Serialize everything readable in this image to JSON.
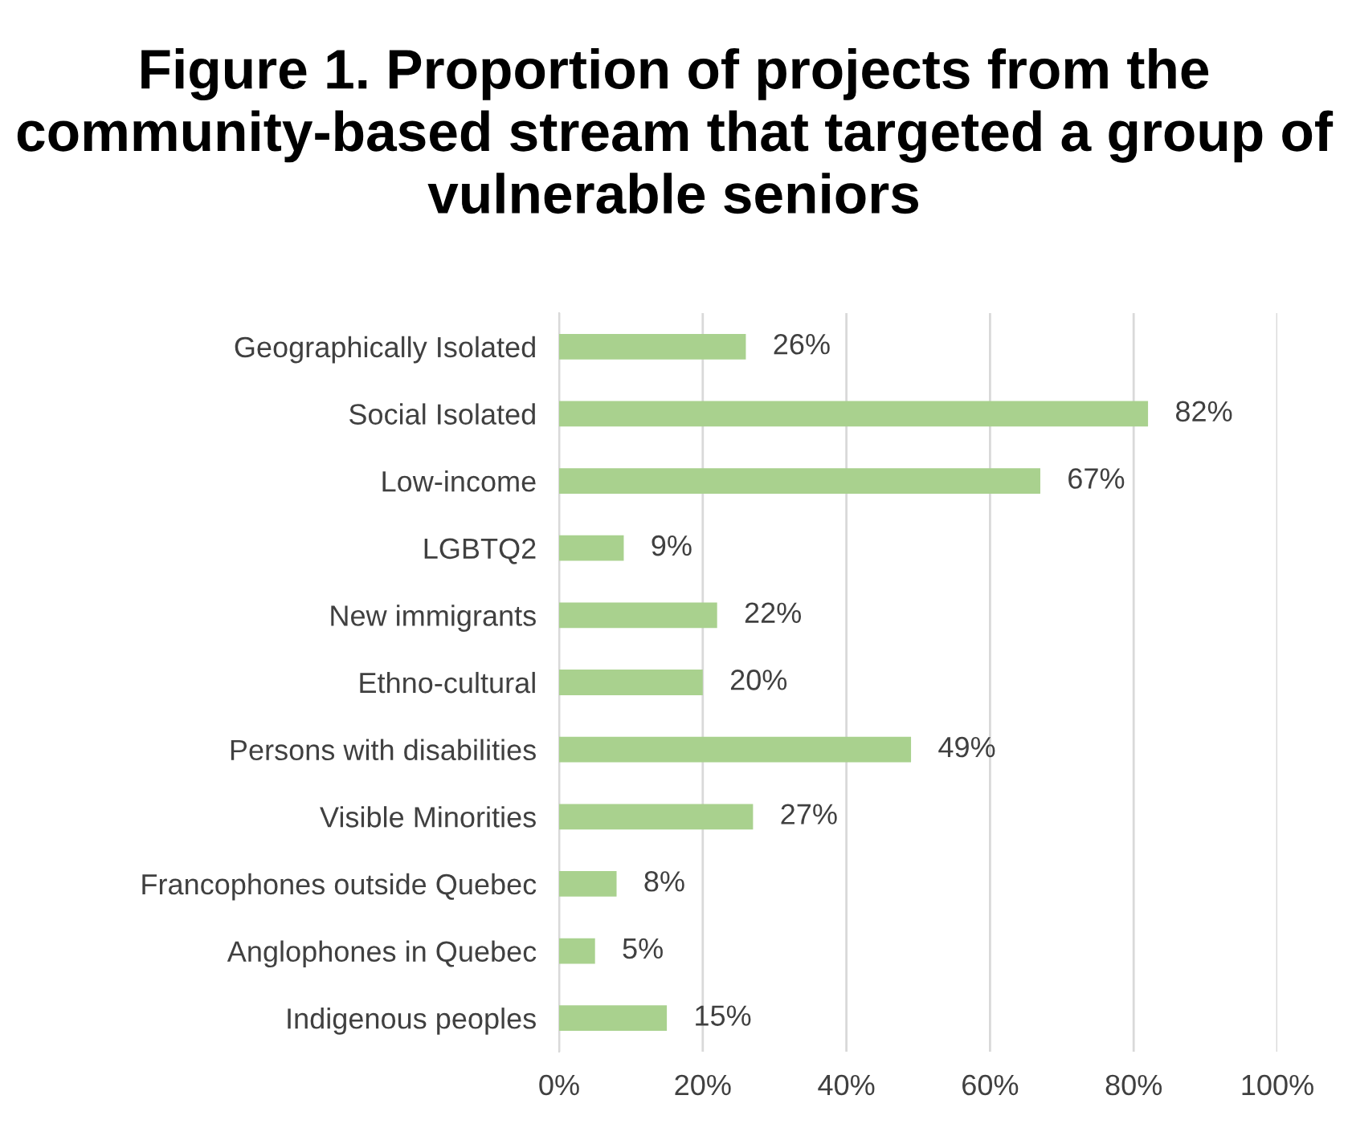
{
  "chart_data": {
    "type": "bar",
    "orientation": "horizontal",
    "title": "Figure 1. Proportion of projects from the community-based stream that targeted a group of vulnerable seniors",
    "categories": [
      "Geographically Isolated",
      "Social Isolated",
      "Low-income",
      "LGBTQ2",
      "New immigrants",
      "Ethno-cultural",
      "Persons with disabilities",
      "Visible Minorities",
      "Francophones outside Quebec",
      "Anglophones in Quebec",
      "Indigenous peoples"
    ],
    "values": [
      26,
      82,
      67,
      9,
      22,
      20,
      49,
      27,
      8,
      5,
      15
    ],
    "value_labels": [
      "26%",
      "82%",
      "67%",
      "9%",
      "22%",
      "20%",
      "49%",
      "27%",
      "8%",
      "5%",
      "15%"
    ],
    "color": "#a9d18e",
    "xlim": [
      0,
      100
    ],
    "xticks": [
      {
        "value": 0,
        "label": "0%"
      },
      {
        "value": 20,
        "label": "20%"
      },
      {
        "value": 40,
        "label": "40%"
      },
      {
        "value": 60,
        "label": "60%"
      },
      {
        "value": 80,
        "label": "80%"
      },
      {
        "value": 100,
        "label": "100%"
      }
    ],
    "grid": "x",
    "legend": false
  }
}
